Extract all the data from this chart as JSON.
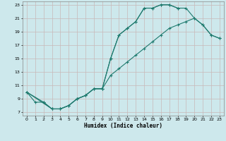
{
  "xlabel": "Humidex (Indice chaleur)",
  "bg_color": "#cde8ec",
  "grid_color": "#c8b8b8",
  "line_color": "#1e7a6e",
  "xlim": [
    -0.5,
    23.5
  ],
  "ylim": [
    6.5,
    23.5
  ],
  "xticks": [
    0,
    1,
    2,
    3,
    4,
    5,
    6,
    7,
    8,
    9,
    10,
    11,
    12,
    13,
    14,
    15,
    16,
    17,
    18,
    19,
    20,
    21,
    22,
    23
  ],
  "yticks": [
    7,
    9,
    11,
    13,
    15,
    17,
    19,
    21,
    23
  ],
  "line1_x": [
    0,
    1,
    2,
    3,
    4,
    5,
    6,
    7,
    8,
    9,
    10,
    11,
    12,
    13,
    14,
    15,
    16,
    17,
    18
  ],
  "line1_y": [
    10,
    8.5,
    8.5,
    7.5,
    7.5,
    8.0,
    9.0,
    9.5,
    10.5,
    10.5,
    15.0,
    18.5,
    19.5,
    20.5,
    22.5,
    22.5,
    23.0,
    23.0,
    22.5
  ],
  "line2_x": [
    0,
    2,
    3,
    4,
    5,
    6,
    7,
    8,
    9,
    10,
    11,
    12,
    13,
    14,
    15,
    16,
    17,
    18,
    19,
    20,
    21,
    22,
    23
  ],
  "line2_y": [
    10,
    8.5,
    7.5,
    7.5,
    8.0,
    9.0,
    9.5,
    10.5,
    10.5,
    15.0,
    18.5,
    19.5,
    20.5,
    22.5,
    22.5,
    23.0,
    23.0,
    22.5,
    22.5,
    21.0,
    20.0,
    18.5,
    18.0
  ],
  "line3_x": [
    0,
    3,
    4,
    5,
    6,
    7,
    8,
    9,
    10,
    11,
    12,
    13,
    14,
    15,
    16,
    17,
    18,
    19,
    20,
    21,
    22,
    23
  ],
  "line3_y": [
    10,
    7.5,
    7.5,
    8.0,
    9.0,
    9.5,
    10.5,
    10.5,
    12.5,
    13.5,
    14.5,
    15.5,
    16.5,
    17.5,
    18.5,
    19.5,
    20.0,
    20.5,
    21.0,
    20.0,
    18.5,
    18.0
  ]
}
